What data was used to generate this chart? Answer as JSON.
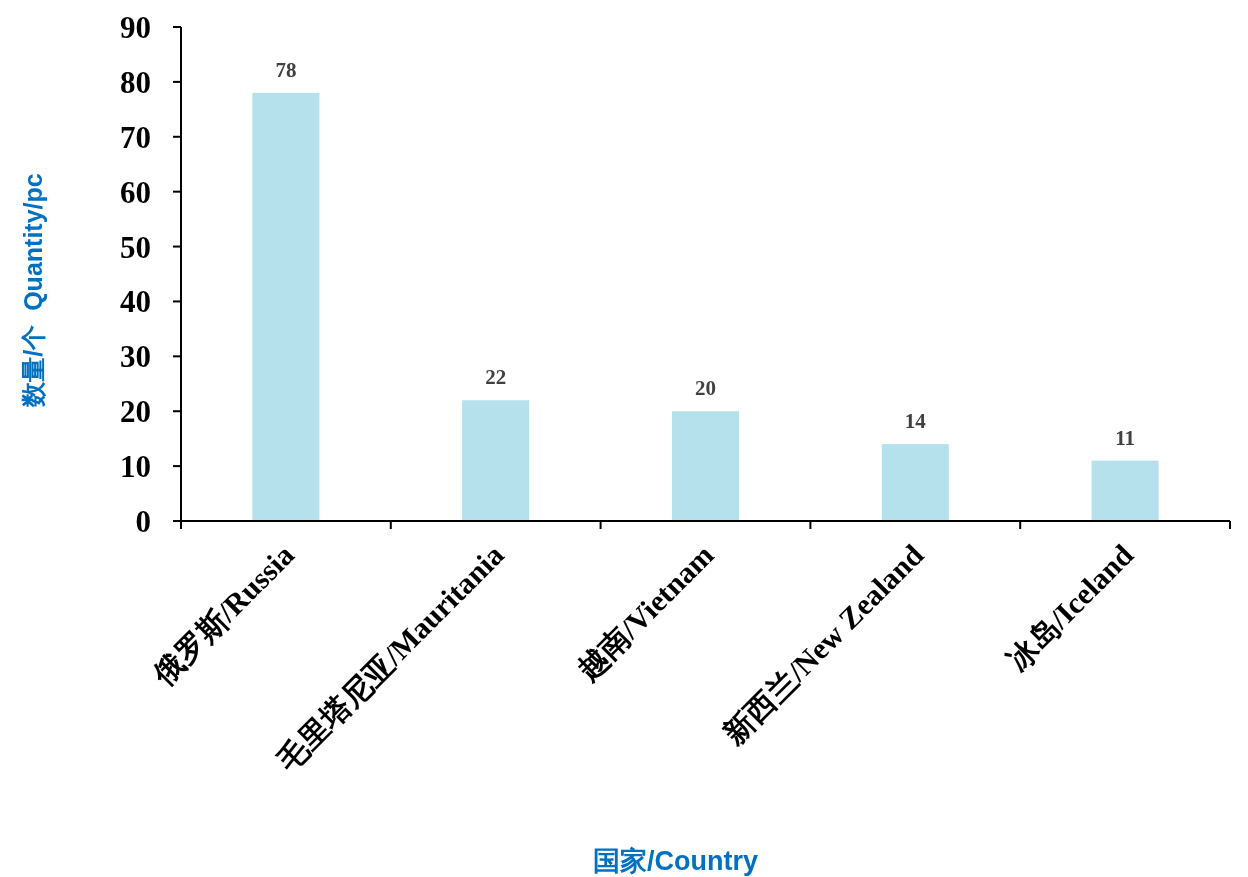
{
  "chart_data": {
    "type": "bar",
    "xlabel": "国家/Country",
    "ylabel": "数量/个  Quantity/pc",
    "categories": [
      "俄罗斯/Russia",
      "毛里塔尼亚/Mauritania",
      "越南/Vietnam",
      "新西兰/New Zealand",
      "冰岛/Iceland"
    ],
    "values": [
      78,
      22,
      20,
      14,
      11
    ],
    "color": "#b4e1ec",
    "ylim": [
      0,
      90
    ],
    "yticks": [
      0,
      10,
      20,
      30,
      40,
      50,
      60,
      70,
      80,
      90
    ],
    "data_labels": true
  }
}
